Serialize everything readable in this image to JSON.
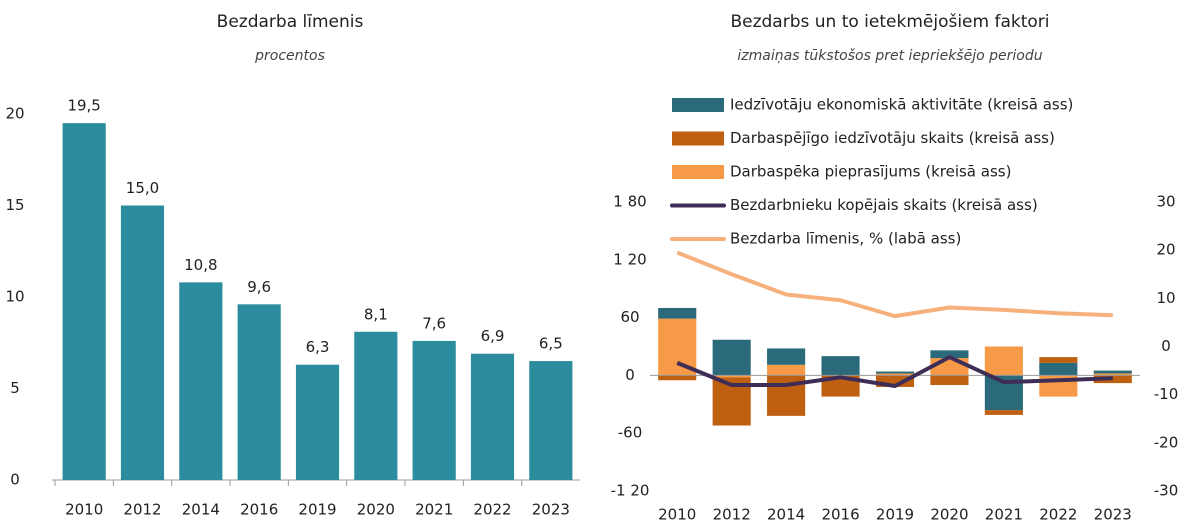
{
  "chart_data": [
    {
      "type": "bar",
      "title": "Bezdarba līmenis",
      "subtitle": "procentos",
      "categories": [
        "2010",
        "2012",
        "2014",
        "2016",
        "2019",
        "2020",
        "2021",
        "2022",
        "2023"
      ],
      "values": [
        19.5,
        15.0,
        10.8,
        9.6,
        6.3,
        8.1,
        7.6,
        6.9,
        6.5
      ],
      "value_labels": [
        "19,5",
        "15,0",
        "10,8",
        "9,6",
        "6,3",
        "8,1",
        "7,6",
        "6,9",
        "6,5"
      ],
      "color": "#2a8c9c",
      "ylim": [
        0,
        20
      ],
      "yticks": [
        0,
        5,
        10,
        15,
        20
      ]
    },
    {
      "type": "stacked_bar_line",
      "title": "Bezdarbs un to ietekmējošiem faktori",
      "subtitle": "izmaiņas tūkstošos pret iepriekšējo periodu",
      "categories": [
        "2010",
        "2012",
        "2014",
        "2016",
        "2019",
        "2020",
        "2021",
        "2022",
        "2023"
      ],
      "series": [
        {
          "name": "Iedzīvotāju ekonomiskā aktivitāte (kreisā ass)",
          "type": "bar",
          "color": "#2a6a7b",
          "values": [
            11,
            37,
            17,
            20,
            2,
            8,
            -36,
            13,
            3
          ]
        },
        {
          "name": "Darbaspējīgo iedzīvotāju skaits (kreisā ass)",
          "type": "bar",
          "color": "#bf5f10",
          "values": [
            -5,
            -50,
            -42,
            -22,
            -12,
            -10,
            -5,
            6,
            -8
          ]
        },
        {
          "name": "Darbaspēka pieprasījums (kreisā ass)",
          "type": "bar",
          "color": "#f79a47",
          "values": [
            59,
            -2,
            11,
            0,
            2,
            18,
            30,
            -22,
            2
          ]
        },
        {
          "name": "Bezdarbnieku kopējais skaits (kreisā ass)",
          "type": "line",
          "color": "#3e2d56",
          "values": [
            13,
            -10,
            -10,
            -2,
            -11,
            19,
            -7,
            -5,
            -3
          ]
        },
        {
          "name": "Bezdarba līmenis, % (labā ass)",
          "type": "line",
          "axis": "y2",
          "color": "#f5b07c",
          "values": [
            19.5,
            15.0,
            10.8,
            9.6,
            6.3,
            8.1,
            7.6,
            6.9,
            6.5
          ]
        }
      ],
      "ylim": [
        -120,
        180
      ],
      "yticks": [
        {
          "value": -120,
          "label": "-1 20"
        },
        -60,
        0,
        60,
        {
          "value": 120,
          "label": "1 20"
        },
        {
          "value": 180,
          "label": "1 80"
        }
      ],
      "y2lim": [
        -30,
        30
      ],
      "y2ticks": [
        -30,
        -20,
        -10,
        0,
        10,
        20,
        30
      ]
    }
  ]
}
